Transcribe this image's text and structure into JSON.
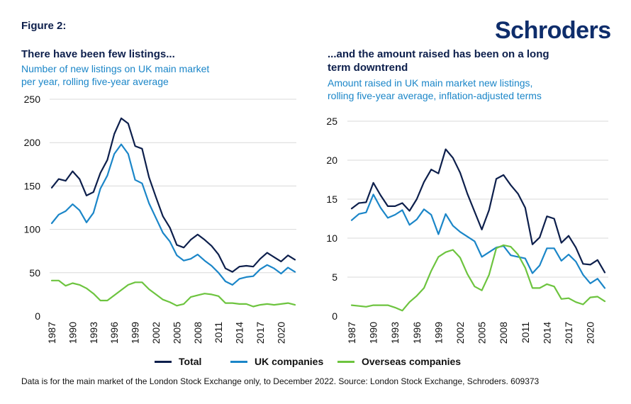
{
  "figure_label": "Figure 2:",
  "logo_text": "Schroders",
  "footnote": "Data is for the main market of the London Stock Exchange only, to December 2022. Source: London Stock Exchange, Schroders. 609373",
  "colors": {
    "total": "#0d1f4c",
    "uk": "#1b86c8",
    "overseas": "#6dc43f",
    "grid": "#d9d9d9",
    "axis_text": "#111111"
  },
  "legend": [
    {
      "key": "total",
      "label": "Total"
    },
    {
      "key": "uk",
      "label": "UK companies"
    },
    {
      "key": "overseas",
      "label": "Overseas companies"
    }
  ],
  "chart_data": [
    {
      "type": "line",
      "title": "There have been few listings...",
      "subtitle_line1": "Number of new listings on UK main market",
      "subtitle_line2": "per year, rolling five-year average",
      "xlabel": "",
      "ylabel": "",
      "x": [
        1987,
        1988,
        1989,
        1990,
        1991,
        1992,
        1993,
        1994,
        1995,
        1996,
        1997,
        1998,
        1999,
        2000,
        2001,
        2002,
        2003,
        2004,
        2005,
        2006,
        2007,
        2008,
        2009,
        2010,
        2011,
        2012,
        2013,
        2014,
        2015,
        2016,
        2017,
        2018,
        2019,
        2020,
        2021,
        2022
      ],
      "xticks": [
        1987,
        1990,
        1993,
        1996,
        1999,
        2002,
        2005,
        2008,
        2011,
        2014,
        2017,
        2020
      ],
      "ylim": [
        0,
        250
      ],
      "yticks": [
        0,
        50,
        100,
        150,
        200,
        250
      ],
      "series": [
        {
          "key": "total",
          "name": "Total",
          "values": [
            148,
            158,
            156,
            167,
            158,
            139,
            143,
            165,
            180,
            210,
            228,
            222,
            196,
            193,
            160,
            137,
            115,
            102,
            82,
            79,
            88,
            94,
            88,
            81,
            71,
            55,
            51,
            57,
            58,
            57,
            66,
            73,
            68,
            63,
            70,
            65
          ]
        },
        {
          "key": "uk",
          "name": "UK companies",
          "values": [
            107,
            117,
            121,
            129,
            122,
            108,
            119,
            147,
            162,
            187,
            198,
            187,
            157,
            153,
            130,
            113,
            96,
            86,
            70,
            64,
            66,
            71,
            64,
            58,
            50,
            40,
            36,
            43,
            45,
            46,
            54,
            59,
            55,
            49,
            56,
            51
          ]
        },
        {
          "key": "overseas",
          "name": "Overseas companies",
          "values": [
            41,
            41,
            35,
            38,
            36,
            32,
            26,
            18,
            18,
            24,
            30,
            36,
            39,
            39,
            31,
            25,
            19,
            16,
            12,
            14,
            22,
            24,
            26,
            25,
            23,
            15,
            15,
            14,
            14,
            11,
            13,
            14,
            13,
            14,
            15,
            13
          ]
        }
      ]
    },
    {
      "type": "line",
      "title_line1": "...and the amount raised has been on a long",
      "title_line2": "term downtrend",
      "subtitle_line1": "Amount raised in UK main market new listings,",
      "subtitle_line2": "rolling five-year average, inflation-adjusted terms",
      "xlabel": "",
      "ylabel": "",
      "x": [
        1987,
        1988,
        1989,
        1990,
        1991,
        1992,
        1993,
        1994,
        1995,
        1996,
        1997,
        1998,
        1999,
        2000,
        2001,
        2002,
        2003,
        2004,
        2005,
        2006,
        2007,
        2008,
        2009,
        2010,
        2011,
        2012,
        2013,
        2014,
        2015,
        2016,
        2017,
        2018,
        2019,
        2020,
        2021,
        2022
      ],
      "xticks": [
        1987,
        1990,
        1993,
        1996,
        1999,
        2002,
        2005,
        2008,
        2011,
        2014,
        2017,
        2020
      ],
      "ylim": [
        0,
        25
      ],
      "yticks": [
        0,
        5,
        10,
        15,
        20,
        25
      ],
      "series": [
        {
          "key": "total",
          "name": "Total",
          "values": [
            13.8,
            14.5,
            14.6,
            17.1,
            15.5,
            14.1,
            14.1,
            14.5,
            13.5,
            15.0,
            17.2,
            18.8,
            18.3,
            21.4,
            20.3,
            18.4,
            15.7,
            13.4,
            11.1,
            13.6,
            17.6,
            18.1,
            16.8,
            15.7,
            13.9,
            9.2,
            10.1,
            12.8,
            12.5,
            9.4,
            10.3,
            8.8,
            6.7,
            6.6,
            7.2,
            5.6
          ]
        },
        {
          "key": "uk",
          "name": "UK companies",
          "values": [
            12.3,
            13.1,
            13.3,
            15.6,
            13.9,
            12.6,
            13.0,
            13.6,
            11.7,
            12.4,
            13.7,
            13.0,
            10.5,
            13.1,
            11.6,
            10.8,
            10.2,
            9.6,
            7.6,
            8.2,
            8.8,
            9.0,
            7.8,
            7.6,
            7.4,
            5.5,
            6.5,
            8.7,
            8.7,
            7.1,
            7.9,
            7.0,
            5.3,
            4.2,
            4.8,
            3.6
          ]
        },
        {
          "key": "overseas",
          "name": "Overseas companies",
          "values": [
            1.4,
            1.3,
            1.2,
            1.4,
            1.4,
            1.4,
            1.1,
            0.7,
            1.8,
            2.6,
            3.6,
            5.8,
            7.6,
            8.2,
            8.5,
            7.5,
            5.4,
            3.8,
            3.3,
            5.3,
            8.7,
            9.1,
            8.9,
            7.9,
            6.2,
            3.6,
            3.6,
            4.1,
            3.8,
            2.2,
            2.3,
            1.8,
            1.5,
            2.4,
            2.5,
            1.9
          ]
        }
      ]
    }
  ]
}
